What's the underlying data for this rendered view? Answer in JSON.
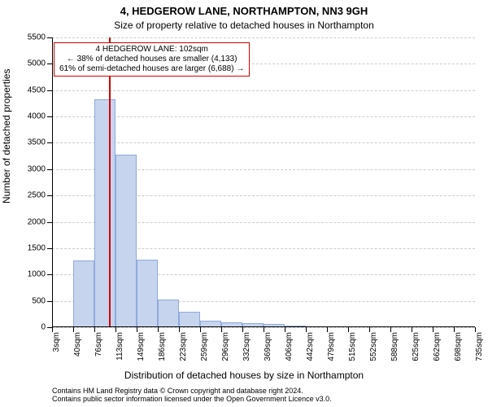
{
  "title_line1": "4, HEDGEROW LANE, NORTHAMPTON, NN3 9GH",
  "title_line2": "Size of property relative to detached houses in Northampton",
  "title_fontsize": 13,
  "subtitle_fontsize": 12,
  "ylabel": "Number of detached properties",
  "xlabel": "Distribution of detached houses by size in Northampton",
  "axis_label_fontsize": 12,
  "tick_fontsize": 10,
  "background_color": "#ffffff",
  "grid_color": "#cccccc",
  "axis_color": "#000000",
  "bar_fill": "#c6d4ee",
  "bar_border": "#8faadc",
  "bar_border_width": 1,
  "marker_color": "#d10000",
  "marker_width": 2,
  "annot_border": "#d10000",
  "annot_fontsize": 10,
  "attribution_fontsize": 9,
  "chart_type": "histogram",
  "x_min": 3,
  "x_max": 735,
  "y_min": 0,
  "y_max": 5500,
  "y_ticks": [
    0,
    500,
    1000,
    1500,
    2000,
    2500,
    3000,
    3500,
    4000,
    4500,
    5000,
    5500
  ],
  "x_tick_step": 36.6,
  "x_tick_labels": [
    "3sqm",
    "40sqm",
    "76sqm",
    "113sqm",
    "149sqm",
    "186sqm",
    "223sqm",
    "259sqm",
    "296sqm",
    "332sqm",
    "369sqm",
    "406sqm",
    "442sqm",
    "479sqm",
    "515sqm",
    "552sqm",
    "588sqm",
    "625sqm",
    "662sqm",
    "698sqm",
    "735sqm"
  ],
  "bars": [
    {
      "x0": 40,
      "x1": 76,
      "y": 1260
    },
    {
      "x0": 76,
      "x1": 113,
      "y": 4320
    },
    {
      "x0": 113,
      "x1": 149,
      "y": 3280
    },
    {
      "x0": 149,
      "x1": 186,
      "y": 1280
    },
    {
      "x0": 186,
      "x1": 223,
      "y": 520
    },
    {
      "x0": 223,
      "x1": 259,
      "y": 300
    },
    {
      "x0": 259,
      "x1": 296,
      "y": 130
    },
    {
      "x0": 296,
      "x1": 332,
      "y": 100
    },
    {
      "x0": 332,
      "x1": 369,
      "y": 70
    },
    {
      "x0": 369,
      "x1": 406,
      "y": 60
    },
    {
      "x0": 406,
      "x1": 442,
      "y": 20
    }
  ],
  "marker_x": 102,
  "annot_line1": "4 HEDGEROW LANE: 102sqm",
  "annot_line2": "← 38% of detached houses are smaller (4,133)",
  "annot_line3": "61% of semi-detached houses are larger (6,688) →",
  "attribution_line1": "Contains HM Land Registry data © Crown copyright and database right 2024.",
  "attribution_line2": "Contains public sector information licensed under the Open Government Licence v3.0."
}
